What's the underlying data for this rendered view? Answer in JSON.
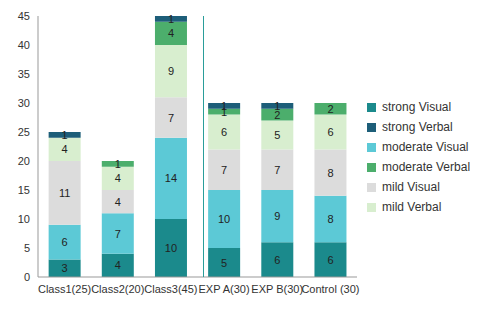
{
  "chart_data": {
    "type": "bar",
    "stacked": true,
    "data_labels": true,
    "grid": false,
    "legend": "right",
    "categories": [
      "Class1(25)",
      "Class2(20)",
      "Class3(45)",
      "EXP A(30)",
      "EXP B(30)",
      "Control (30)"
    ],
    "ylim": [
      0,
      45
    ],
    "yticks": [
      0,
      5,
      10,
      15,
      20,
      25,
      30,
      35,
      40,
      45
    ],
    "series": [
      {
        "name": "strong Visual",
        "color": "#1b8a8c",
        "values": [
          3,
          4,
          10,
          5,
          6,
          6
        ]
      },
      {
        "name": "moderate Visual",
        "color": "#5cc9d6",
        "values": [
          6,
          7,
          14,
          10,
          9,
          8
        ]
      },
      {
        "name": "mild Visual",
        "color": "#dcdcdc",
        "values": [
          11,
          4,
          7,
          7,
          7,
          8
        ]
      },
      {
        "name": "mild Verbal",
        "color": "#d8eecf",
        "values": [
          4,
          4,
          9,
          6,
          5,
          6
        ]
      },
      {
        "name": "moderate Verbal",
        "color": "#4cae6c",
        "values": [
          null,
          1,
          4,
          1,
          2,
          2
        ]
      },
      {
        "name": "strong Verbal",
        "color": "#1d5e79",
        "values": [
          1,
          null,
          1,
          1,
          1,
          null
        ]
      }
    ]
  }
}
